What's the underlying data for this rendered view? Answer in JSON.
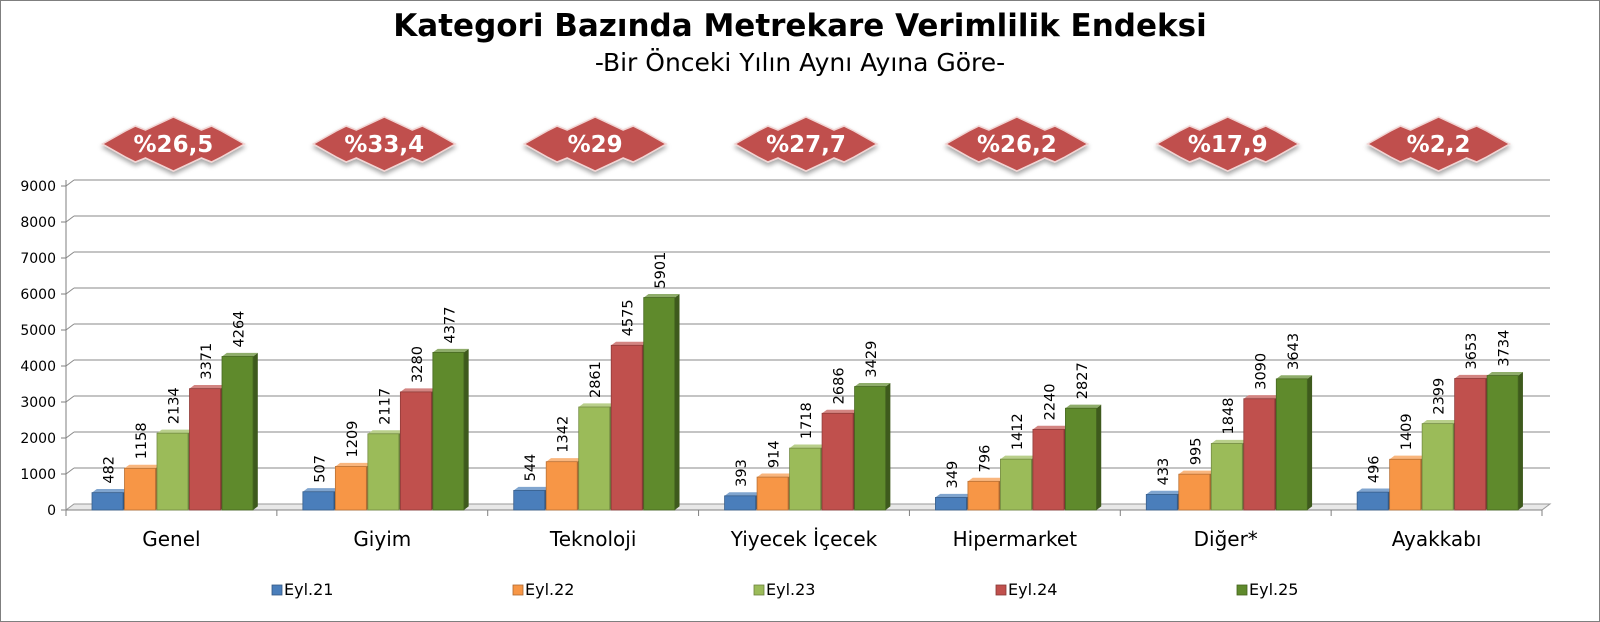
{
  "chart_data": {
    "type": "bar",
    "title": "Kategori Bazında Metrekare Verimlilik Endeksi",
    "subtitle": "-Bir Önceki Yılın Aynı Ayına Göre-",
    "categories": [
      "Genel",
      "Giyim",
      "Teknoloji",
      "Yiyecek İçecek",
      "Hipermarket",
      "Diğer*",
      "Ayakkabı"
    ],
    "series": [
      {
        "name": "Eyl.21",
        "color": "#4a7ebb",
        "values": [
          482,
          507,
          544,
          393,
          349,
          433,
          496
        ]
      },
      {
        "name": "Eyl.22",
        "color": "#f79646",
        "values": [
          1158,
          1209,
          1342,
          914,
          796,
          995,
          1409
        ]
      },
      {
        "name": "Eyl.23",
        "color": "#9bbb59",
        "values": [
          2134,
          2117,
          2861,
          1718,
          1412,
          1848,
          2399
        ]
      },
      {
        "name": "Eyl.24",
        "color": "#c0504d",
        "values": [
          3371,
          3280,
          4575,
          2686,
          2240,
          3090,
          3653
        ]
      },
      {
        "name": "Eyl.25",
        "color": "#5f8a2c",
        "values": [
          4264,
          4377,
          5901,
          3429,
          2827,
          3643,
          3734
        ]
      }
    ],
    "badges": [
      "%26,5",
      "%33,4",
      "%29",
      "%27,7",
      "%26,2",
      "%17,9",
      "%2,2"
    ],
    "badge_color": "#c0504d",
    "ylim": [
      0,
      9000
    ],
    "yticks": [
      0,
      1000,
      2000,
      3000,
      4000,
      5000,
      6000,
      7000,
      8000,
      9000
    ],
    "grid": true,
    "legend_position": "bottom",
    "xlabel": "",
    "ylabel": ""
  }
}
